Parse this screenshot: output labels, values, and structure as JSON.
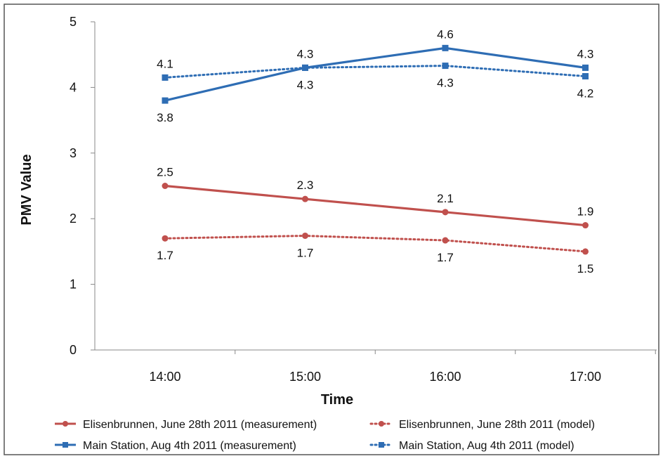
{
  "chart_data": {
    "type": "line",
    "xlabel": "Time",
    "ylabel": "PMV Value",
    "categories": [
      "14:00",
      "15:00",
      "16:00",
      "17:00"
    ],
    "ylim": [
      0,
      5
    ],
    "yticks": [
      0,
      1,
      2,
      3,
      4,
      5
    ],
    "grid": false,
    "legend_position": "bottom",
    "series": [
      {
        "name": "Elisenbrunnen, June 28th 2011 (measurement)",
        "values": [
          2.5,
          2.3,
          2.1,
          1.9
        ],
        "labels": [
          "2.5",
          "2.3",
          "2.1",
          "1.9"
        ],
        "label_position": "above",
        "color": "#c0504d",
        "dash": "solid",
        "marker": "circle"
      },
      {
        "name": "Elisenbrunnen, June 28th 2011 (model)",
        "values": [
          1.7,
          1.74,
          1.67,
          1.5
        ],
        "labels": [
          "1.7",
          "1.7",
          "1.7",
          "1.5"
        ],
        "label_position": "below",
        "color": "#c0504d",
        "dash": "dotted",
        "marker": "circle"
      },
      {
        "name": "Main Station, Aug 4th 2011 (measurement)",
        "values": [
          3.8,
          4.3,
          4.6,
          4.3
        ],
        "labels": [
          "3.8",
          "4.3",
          "4.6",
          "4.3"
        ],
        "label_position": [
          "below",
          "above",
          "above",
          "above"
        ],
        "color": "#2e6db4",
        "dash": "solid",
        "marker": "square"
      },
      {
        "name": "Main Station, Aug 4th 2011 (model)",
        "values": [
          4.15,
          4.3,
          4.33,
          4.17
        ],
        "labels": [
          "4.1",
          "4.3",
          "4.3",
          "4.2"
        ],
        "label_position": [
          "above",
          "below",
          "below",
          "below"
        ],
        "color": "#2e6db4",
        "dash": "dotted",
        "marker": "square"
      }
    ]
  }
}
